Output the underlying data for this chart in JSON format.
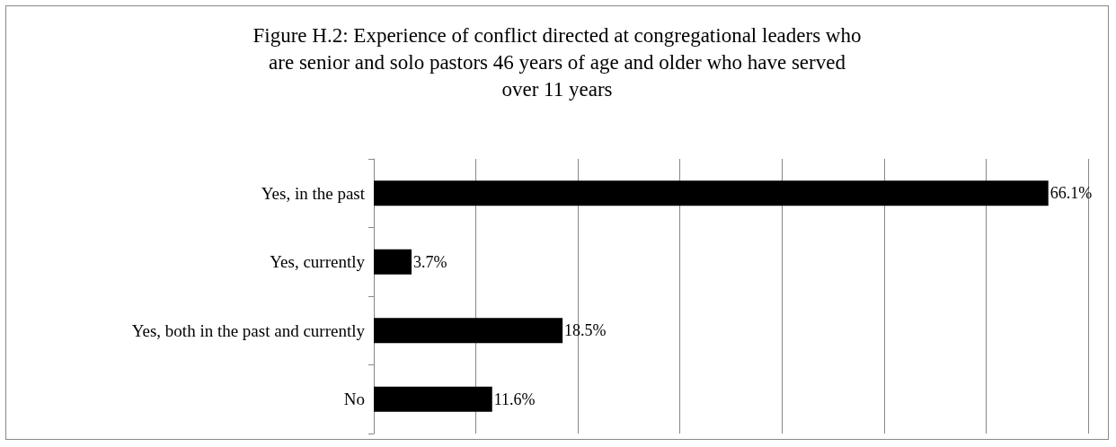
{
  "chart_data": {
    "type": "bar",
    "orientation": "horizontal",
    "title": "Figure H.2: Experience of conflict directed at congregational leaders who\nare senior and solo pastors 46 years of age and older who have served\nover 11 years",
    "categories": [
      "Yes, in the past",
      "Yes, currently",
      "Yes, both in the past and currently",
      "No"
    ],
    "values": [
      66.1,
      3.7,
      18.5,
      11.6
    ],
    "value_labels": [
      "66.1%",
      "3.7%",
      "18.5%",
      "11.6%"
    ],
    "color": "#000000",
    "xlim": [
      0,
      70
    ],
    "xticks": [
      {
        "value": 0,
        "label": null
      },
      {
        "value": 10,
        "label": null
      },
      {
        "value": 20,
        "label": null
      },
      {
        "value": 30,
        "label": null
      },
      {
        "value": 40,
        "label": null
      },
      {
        "value": 50,
        "label": null
      },
      {
        "value": 60,
        "label": null
      },
      {
        "value": 70,
        "label": null
      }
    ],
    "tick_labels": "y",
    "grid": "x"
  }
}
